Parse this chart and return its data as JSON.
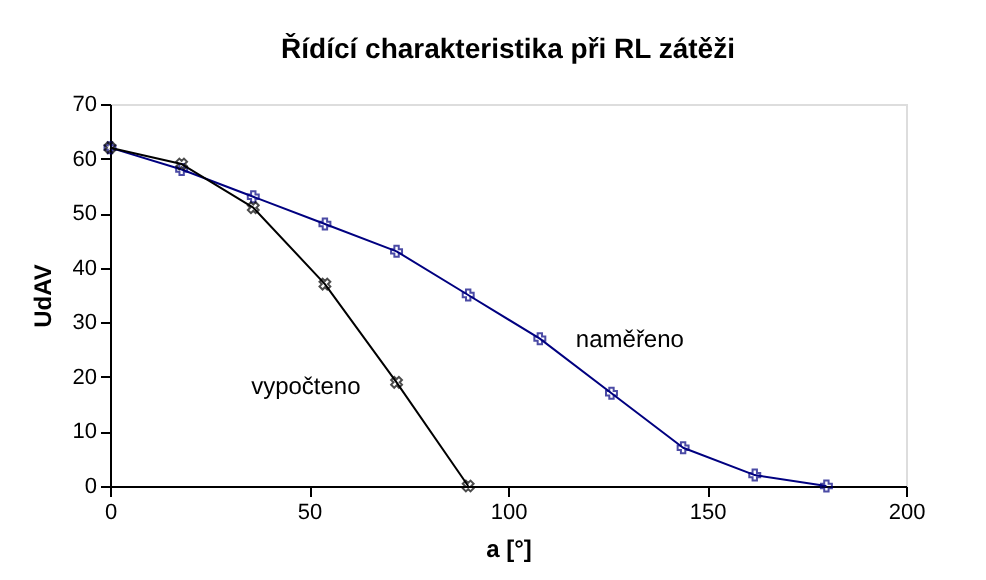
{
  "chart_data": {
    "type": "line",
    "title": "Řídící charakteristika při RL zátěži",
    "xlabel": "a [°]",
    "ylabel": "UdAV",
    "xlim": [
      0,
      200
    ],
    "xticks": [
      0,
      50,
      100,
      150,
      200
    ],
    "ylim": [
      0,
      70
    ],
    "yticks": [
      0,
      10,
      20,
      30,
      40,
      50,
      60,
      70
    ],
    "grid": false,
    "legend": false,
    "marker": "cross",
    "line_style": "solid",
    "series": [
      {
        "name": "naměřeno",
        "color": "#000080",
        "x": [
          0,
          18,
          36,
          54,
          72,
          90,
          108,
          126,
          144,
          162,
          180
        ],
        "values": [
          62,
          58,
          53,
          48,
          43,
          35,
          27,
          17,
          7,
          2,
          0
        ]
      },
      {
        "name": "vypočteno",
        "color": "#000000",
        "x": [
          0,
          18,
          36,
          54,
          72,
          90
        ],
        "values": [
          62,
          59,
          51,
          37,
          19,
          0
        ]
      }
    ]
  }
}
